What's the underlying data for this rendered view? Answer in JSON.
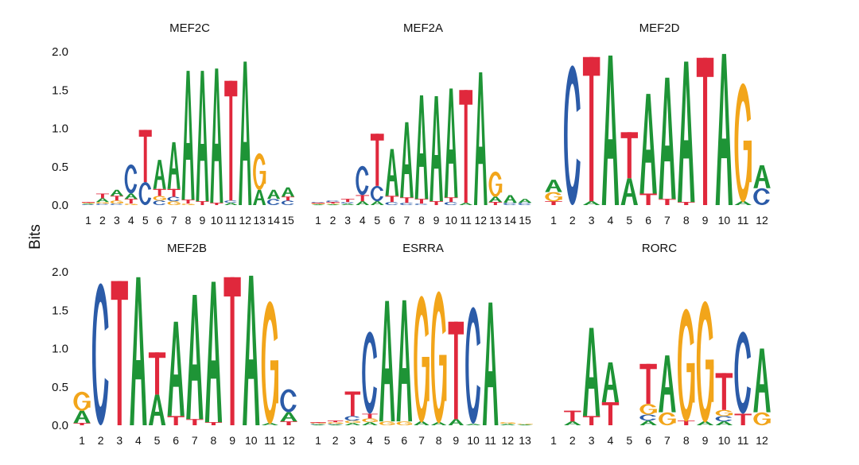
{
  "ylabel": "Bits",
  "colors": {
    "A": "#1e9436",
    "C": "#2b5ba8",
    "G": "#f2a51a",
    "T": "#e0283c"
  },
  "chart_data": [
    {
      "type": "sequence-logo",
      "title": "MEF2C",
      "ylim": [
        0,
        2.0
      ],
      "yticks": [
        "0.0",
        "0.5",
        "1.0",
        "1.5",
        "2.0"
      ],
      "positions": [
        "1",
        "2",
        "3",
        "4",
        "5",
        "6",
        "7",
        "8",
        "9",
        "10",
        "11",
        "12",
        "13",
        "14",
        "15"
      ],
      "stacks": [
        [
          [
            "C",
            0.01
          ],
          [
            "A",
            0.01
          ],
          [
            "G",
            0.01
          ],
          [
            "T",
            0.01
          ]
        ],
        [
          [
            "C",
            0.02
          ],
          [
            "G",
            0.02
          ],
          [
            "A",
            0.05
          ],
          [
            "T",
            0.06
          ]
        ],
        [
          [
            "C",
            0.02
          ],
          [
            "G",
            0.04
          ],
          [
            "T",
            0.06
          ],
          [
            "A",
            0.08
          ]
        ],
        [
          [
            "G",
            0.02
          ],
          [
            "T",
            0.06
          ],
          [
            "A",
            0.07
          ],
          [
            "C",
            0.38
          ]
        ],
        [
          [
            "C",
            0.3
          ],
          [
            "T",
            0.68
          ]
        ],
        [
          [
            "C",
            0.06
          ],
          [
            "G",
            0.06
          ],
          [
            "T",
            0.09
          ],
          [
            "A",
            0.38
          ]
        ],
        [
          [
            "G",
            0.05
          ],
          [
            "C",
            0.06
          ],
          [
            "T",
            0.1
          ],
          [
            "A",
            0.61
          ]
        ],
        [
          [
            "G",
            0.02
          ],
          [
            "T",
            0.05
          ],
          [
            "A",
            1.68
          ]
        ],
        [
          [
            "T",
            0.05
          ],
          [
            "A",
            1.7
          ]
        ],
        [
          [
            "T",
            0.03
          ],
          [
            "A",
            1.75
          ]
        ],
        [
          [
            "A",
            0.03
          ],
          [
            "C",
            0.03
          ],
          [
            "T",
            1.56
          ]
        ],
        [
          [
            "A",
            1.87
          ]
        ],
        [
          [
            "A",
            0.2
          ],
          [
            "G",
            0.48
          ]
        ],
        [
          [
            "C",
            0.08
          ],
          [
            "A",
            0.12
          ]
        ],
        [
          [
            "C",
            0.06
          ],
          [
            "T",
            0.05
          ],
          [
            "A",
            0.12
          ]
        ]
      ]
    },
    {
      "type": "sequence-logo",
      "title": "MEF2A",
      "ylim": [
        0,
        2.0
      ],
      "yticks": [],
      "positions": [
        "1",
        "2",
        "3",
        "4",
        "5",
        "6",
        "7",
        "8",
        "9",
        "10",
        "11",
        "12",
        "13",
        "14",
        "15"
      ],
      "stacks": [
        [
          [
            "A",
            0.01
          ],
          [
            "G",
            0.01
          ],
          [
            "T",
            0.01
          ],
          [
            "C",
            0.01
          ]
        ],
        [
          [
            "A",
            0.01
          ],
          [
            "G",
            0.01
          ],
          [
            "T",
            0.02
          ],
          [
            "C",
            0.02
          ]
        ],
        [
          [
            "A",
            0.02
          ],
          [
            "C",
            0.02
          ],
          [
            "T",
            0.04
          ]
        ],
        [
          [
            "A",
            0.05
          ],
          [
            "T",
            0.08
          ],
          [
            "C",
            0.38
          ]
        ],
        [
          [
            "A",
            0.05
          ],
          [
            "C",
            0.2
          ],
          [
            "T",
            0.68
          ]
        ],
        [
          [
            "C",
            0.04
          ],
          [
            "T",
            0.08
          ],
          [
            "A",
            0.61
          ]
        ],
        [
          [
            "C",
            0.03
          ],
          [
            "T",
            0.07
          ],
          [
            "A",
            0.98
          ]
        ],
        [
          [
            "C",
            0.02
          ],
          [
            "T",
            0.06
          ],
          [
            "A",
            1.35
          ]
        ],
        [
          [
            "T",
            0.05
          ],
          [
            "A",
            1.37
          ]
        ],
        [
          [
            "C",
            0.04
          ],
          [
            "T",
            0.06
          ],
          [
            "A",
            1.42
          ]
        ],
        [
          [
            "A",
            0.03
          ],
          [
            "T",
            1.47
          ]
        ],
        [
          [
            "A",
            1.73
          ]
        ],
        [
          [
            "T",
            0.04
          ],
          [
            "A",
            0.07
          ],
          [
            "G",
            0.33
          ]
        ],
        [
          [
            "C",
            0.03
          ],
          [
            "A",
            0.1
          ]
        ],
        [
          [
            "C",
            0.03
          ],
          [
            "A",
            0.05
          ]
        ]
      ]
    },
    {
      "type": "sequence-logo",
      "title": "MEF2D",
      "ylim": [
        0,
        2.0
      ],
      "yticks": [],
      "positions": [
        "1",
        "2",
        "3",
        "4",
        "5",
        "6",
        "7",
        "8",
        "9",
        "10",
        "11",
        "12"
      ],
      "stacks": [
        [
          [
            "T",
            0.05
          ],
          [
            "G",
            0.12
          ],
          [
            "A",
            0.16
          ]
        ],
        [
          [
            "C",
            1.82
          ]
        ],
        [
          [
            "A",
            0.05
          ],
          [
            "T",
            1.88
          ]
        ],
        [
          [
            "A",
            1.95
          ]
        ],
        [
          [
            "A",
            0.35
          ],
          [
            "T",
            0.6
          ]
        ],
        [
          [
            "T",
            0.15
          ],
          [
            "A",
            1.3
          ]
        ],
        [
          [
            "T",
            0.08
          ],
          [
            "A",
            1.58
          ]
        ],
        [
          [
            "T",
            0.04
          ],
          [
            "A",
            1.83
          ]
        ],
        [
          [
            "T",
            1.92
          ]
        ],
        [
          [
            "A",
            1.97
          ]
        ],
        [
          [
            "A",
            0.05
          ],
          [
            "G",
            1.55
          ]
        ],
        [
          [
            "C",
            0.22
          ],
          [
            "A",
            0.3
          ]
        ]
      ]
    },
    {
      "type": "sequence-logo",
      "title": "MEF2B",
      "ylim": [
        0,
        2.0
      ],
      "yticks": [
        "0.0",
        "0.5",
        "1.0",
        "1.5",
        "2.0"
      ],
      "positions": [
        "1",
        "2",
        "3",
        "4",
        "5",
        "6",
        "7",
        "8",
        "9",
        "10",
        "11",
        "12"
      ],
      "stacks": [
        [
          [
            "T",
            0.03
          ],
          [
            "A",
            0.16
          ],
          [
            "G",
            0.25
          ]
        ],
        [
          [
            "C",
            1.85
          ]
        ],
        [
          [
            "T",
            1.88
          ]
        ],
        [
          [
            "A",
            1.93
          ]
        ],
        [
          [
            "A",
            0.4
          ],
          [
            "T",
            0.55
          ]
        ],
        [
          [
            "T",
            0.12
          ],
          [
            "A",
            1.23
          ]
        ],
        [
          [
            "T",
            0.08
          ],
          [
            "A",
            1.62
          ]
        ],
        [
          [
            "T",
            0.04
          ],
          [
            "A",
            1.83
          ]
        ],
        [
          [
            "T",
            1.93
          ]
        ],
        [
          [
            "A",
            1.95
          ]
        ],
        [
          [
            "A",
            0.03
          ],
          [
            "G",
            1.6
          ]
        ],
        [
          [
            "T",
            0.05
          ],
          [
            "A",
            0.12
          ],
          [
            "C",
            0.3
          ]
        ]
      ]
    },
    {
      "type": "sequence-logo",
      "title": "ESRRA",
      "ylim": [
        0,
        2.0
      ],
      "yticks": [],
      "positions": [
        "1",
        "2",
        "3",
        "4",
        "5",
        "6",
        "7",
        "8",
        "9",
        "10",
        "11",
        "12",
        "13"
      ],
      "stacks": [
        [
          [
            "A",
            0.01
          ],
          [
            "C",
            0.01
          ],
          [
            "G",
            0.01
          ],
          [
            "T",
            0.01
          ]
        ],
        [
          [
            "A",
            0.01
          ],
          [
            "C",
            0.01
          ],
          [
            "G",
            0.02
          ],
          [
            "T",
            0.02
          ]
        ],
        [
          [
            "A",
            0.03
          ],
          [
            "G",
            0.03
          ],
          [
            "C",
            0.06
          ],
          [
            "T",
            0.32
          ]
        ],
        [
          [
            "A",
            0.04
          ],
          [
            "G",
            0.05
          ],
          [
            "T",
            0.06
          ],
          [
            "C",
            1.07
          ]
        ],
        [
          [
            "G",
            0.05
          ],
          [
            "A",
            1.57
          ]
        ],
        [
          [
            "G",
            0.05
          ],
          [
            "A",
            1.58
          ]
        ],
        [
          [
            "A",
            0.05
          ],
          [
            "G",
            1.65
          ]
        ],
        [
          [
            "A",
            0.04
          ],
          [
            "G",
            1.72
          ]
        ],
        [
          [
            "A",
            0.08
          ],
          [
            "T",
            1.27
          ]
        ],
        [
          [
            "A",
            0.02
          ],
          [
            "C",
            1.52
          ]
        ],
        [
          [
            "A",
            1.6
          ]
        ],
        [
          [
            "A",
            0.02
          ],
          [
            "G",
            0.02
          ]
        ],
        [
          [
            "A",
            0.01
          ],
          [
            "G",
            0.01
          ]
        ]
      ]
    },
    {
      "type": "sequence-logo",
      "title": "RORC",
      "ylim": [
        0,
        2.0
      ],
      "yticks": [],
      "positions": [
        "1",
        "2",
        "3",
        "4",
        "5",
        "6",
        "7",
        "8",
        "9",
        "10",
        "11",
        "12"
      ],
      "stacks": [
        [],
        [
          [
            "A",
            0.05
          ],
          [
            "T",
            0.14
          ]
        ],
        [
          [
            "T",
            0.12
          ],
          [
            "A",
            1.15
          ]
        ],
        [
          [
            "T",
            0.3
          ],
          [
            "A",
            0.52
          ]
        ],
        [],
        [
          [
            "A",
            0.06
          ],
          [
            "C",
            0.08
          ],
          [
            "G",
            0.14
          ],
          [
            "T",
            0.52
          ]
        ],
        [
          [
            "G",
            0.17
          ],
          [
            "A",
            0.74
          ]
        ],
        [
          [
            "T",
            0.06
          ],
          [
            "G",
            1.47
          ]
        ],
        [
          [
            "A",
            0.05
          ],
          [
            "G",
            1.58
          ]
        ],
        [
          [
            "A",
            0.05
          ],
          [
            "C",
            0.07
          ],
          [
            "G",
            0.08
          ],
          [
            "T",
            0.48
          ]
        ],
        [
          [
            "T",
            0.15
          ],
          [
            "C",
            1.07
          ]
        ],
        [
          [
            "G",
            0.17
          ],
          [
            "A",
            0.83
          ]
        ]
      ]
    }
  ]
}
